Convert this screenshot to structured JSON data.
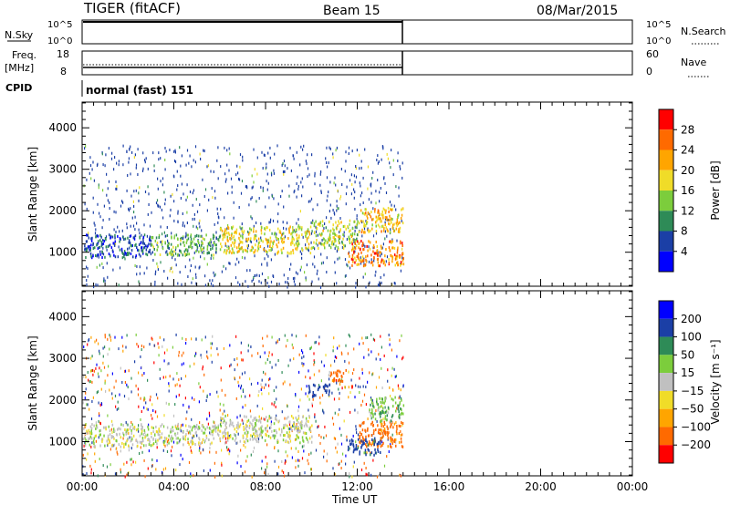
{
  "header": {
    "station": "TIGER (fitACF)",
    "beam": "Beam 15",
    "date": "08/Mar/2015"
  },
  "strip_labels": {
    "nsky": "N.Sky",
    "nsearch": "N.Search",
    "freq_line1": "Freq.",
    "freq_line2": "[MHz]",
    "nave": "Nave",
    "cpid": "CPID",
    "cpid_value": "normal (fast) 151",
    "nsky_ticks": [
      "10^5",
      "10^0"
    ],
    "freq_ticks": [
      "18",
      "8"
    ],
    "nave_ticks": [
      "60",
      "0"
    ]
  },
  "colorbars": {
    "power": {
      "label": "Power [dB]",
      "ticks": [
        "4",
        "8",
        "12",
        "16",
        "20",
        "24",
        "28"
      ],
      "colors": [
        "#0000ff",
        "#1b3fa6",
        "#2e8b57",
        "#7ccd3c",
        "#f0dc28",
        "#ffa500",
        "#ff6a00",
        "#ff0000"
      ]
    },
    "velocity": {
      "label": "Velocity [m s⁻¹]",
      "ticks": [
        "200",
        "100",
        "50",
        "15",
        "−15",
        "−50",
        "−100",
        "−200"
      ],
      "colors": [
        "#0000ff",
        "#1b3fa6",
        "#2e8b57",
        "#7ccd3c",
        "#c0c0c0",
        "#f0dc28",
        "#ffa500",
        "#ff6a00",
        "#ff0000"
      ]
    }
  },
  "chart_data": [
    {
      "type": "heatmap",
      "parameter": "Power",
      "ylabel": "Slant Range [km]",
      "xlabel": "",
      "xlim": [
        "00:00",
        "24:00"
      ],
      "ylim": [
        180,
        4620
      ],
      "x_ticks": [
        "00:00",
        "04:00",
        "08:00",
        "12:00",
        "16:00",
        "20:00",
        "00:00"
      ],
      "y_ticks": [
        1000,
        2000,
        3000,
        4000
      ],
      "data_end_ut": "14:00",
      "scatter_bands": [
        {
          "t": [
            0.0,
            3.0
          ],
          "range": [
            900,
            1450
          ],
          "power_db": 6
        },
        {
          "t": [
            3.0,
            6.0
          ],
          "range": [
            950,
            1450
          ],
          "power_db": 12
        },
        {
          "t": [
            6.0,
            10.0
          ],
          "range": [
            1000,
            1650
          ],
          "power_db": 18
        },
        {
          "t": [
            10.0,
            12.0
          ],
          "range": [
            1100,
            1800
          ],
          "power_db": 16
        },
        {
          "t": [
            12.0,
            14.0
          ],
          "range": [
            1500,
            2100
          ],
          "power_db": 20
        },
        {
          "t": [
            11.5,
            14.0
          ],
          "range": [
            700,
            1300
          ],
          "power_db": 24
        }
      ]
    },
    {
      "type": "heatmap",
      "parameter": "Velocity",
      "ylabel": "Slant Range [km]",
      "xlabel": "Time UT",
      "xlim": [
        "00:00",
        "24:00"
      ],
      "ylim": [
        180,
        4620
      ],
      "x_ticks": [
        "00:00",
        "04:00",
        "08:00",
        "12:00",
        "16:00",
        "20:00",
        "00:00"
      ],
      "y_ticks": [
        1000,
        2000,
        3000,
        4000
      ],
      "data_end_ut": "14:00",
      "scatter_bands": [
        {
          "t": [
            0.0,
            3.0
          ],
          "range": [
            900,
            1450
          ],
          "velocity": 0
        },
        {
          "t": [
            3.0,
            6.0
          ],
          "range": [
            950,
            1450
          ],
          "velocity": 0
        },
        {
          "t": [
            6.0,
            10.0
          ],
          "range": [
            1000,
            1650
          ],
          "velocity": 0
        },
        {
          "t": [
            9.8,
            10.8
          ],
          "range": [
            2100,
            2400
          ],
          "velocity": 150
        },
        {
          "t": [
            10.8,
            11.6
          ],
          "range": [
            2450,
            2750
          ],
          "velocity": -150
        },
        {
          "t": [
            12.0,
            14.0
          ],
          "range": [
            900,
            1500
          ],
          "velocity": -120
        },
        {
          "t": [
            11.5,
            13.0
          ],
          "range": [
            700,
            1100
          ],
          "velocity": 120
        },
        {
          "t": [
            12.5,
            14.0
          ],
          "range": [
            1500,
            2100
          ],
          "velocity": 40
        }
      ]
    }
  ]
}
